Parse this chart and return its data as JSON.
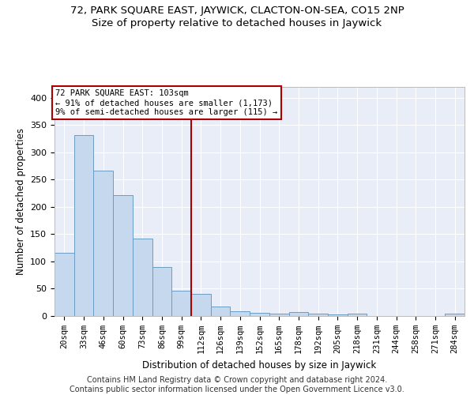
{
  "title_line1": "72, PARK SQUARE EAST, JAYWICK, CLACTON-ON-SEA, CO15 2NP",
  "title_line2": "Size of property relative to detached houses in Jaywick",
  "xlabel": "Distribution of detached houses by size in Jaywick",
  "ylabel": "Number of detached properties",
  "categories": [
    "20sqm",
    "33sqm",
    "46sqm",
    "60sqm",
    "73sqm",
    "86sqm",
    "99sqm",
    "112sqm",
    "126sqm",
    "139sqm",
    "152sqm",
    "165sqm",
    "178sqm",
    "192sqm",
    "205sqm",
    "218sqm",
    "231sqm",
    "244sqm",
    "258sqm",
    "271sqm",
    "284sqm"
  ],
  "values": [
    116,
    331,
    266,
    222,
    142,
    90,
    46,
    41,
    18,
    9,
    6,
    5,
    7,
    4,
    3,
    4,
    0,
    0,
    0,
    0,
    5
  ],
  "bar_color": "#c5d8ee",
  "bar_edge_color": "#6b9dc2",
  "vline_x": 6.5,
  "vline_color": "#aa0000",
  "annotation_line1": "72 PARK SQUARE EAST: 103sqm",
  "annotation_line2": "← 91% of detached houses are smaller (1,173)",
  "annotation_line3": "9% of semi-detached houses are larger (115) →",
  "annotation_box_edgecolor": "#aa0000",
  "ylim": [
    0,
    420
  ],
  "yticks": [
    0,
    50,
    100,
    150,
    200,
    250,
    300,
    350,
    400
  ],
  "plot_bg_color": "#e8edf8",
  "grid_color": "#ffffff",
  "footer_text": "Contains HM Land Registry data © Crown copyright and database right 2024.\nContains public sector information licensed under the Open Government Licence v3.0."
}
